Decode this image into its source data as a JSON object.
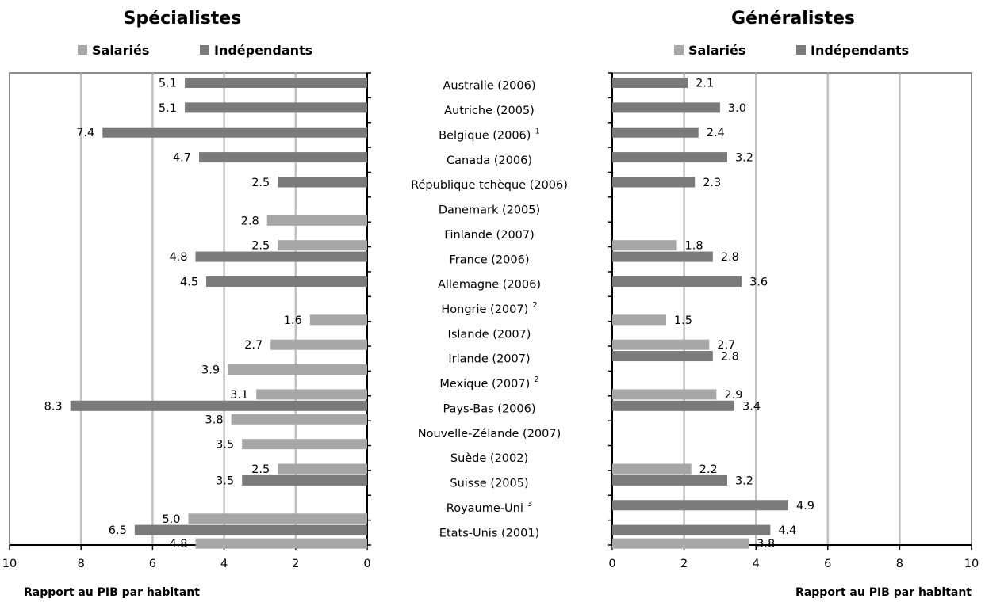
{
  "chart_data": [
    {
      "type": "bar",
      "orientation": "horizontal",
      "direction": "reversed",
      "title": "Spécialistes",
      "xlabel": "Rapport au PIB par habitant",
      "xlim": [
        0,
        10
      ],
      "xticks": [
        "0",
        "2",
        "4",
        "6",
        "8",
        "10"
      ],
      "grid": true,
      "legend": "top",
      "categories": [
        "Australie (2006)",
        "Autriche (2005)",
        "Belgique (2006)",
        "Canada (2006)",
        "République tchèque (2006)",
        "Danemark (2005)",
        "Finlande (2007)",
        "France (2006)",
        "Allemagne (2006)",
        "Hongrie (2007)",
        "Islande (2007)",
        "Irlande (2007)",
        "Mexique (2007)",
        "Pays-Bas (2006)",
        "Nouvelle-Zélande (2007)",
        "Suède (2002)",
        "Suisse (2005)",
        "Royaume-Uni",
        "Etats-Unis (2001)"
      ],
      "series": [
        {
          "name": "Salariés",
          "color": "#a6a6a6",
          "values": [
            null,
            null,
            null,
            null,
            null,
            2.8,
            2.5,
            null,
            null,
            1.6,
            2.7,
            3.9,
            3.1,
            3.8,
            3.5,
            2.5,
            null,
            5.0,
            4.8
          ],
          "labels": [
            "",
            "",
            "",
            "",
            "",
            "2.8",
            "2.5",
            "",
            "",
            "1.6",
            "2.7",
            "3.9",
            "3.1",
            "3.8",
            "3.5",
            "2.5",
            "",
            "5.0",
            "4.8"
          ]
        },
        {
          "name": "Indépendants",
          "color": "#7a7a7a",
          "values": [
            5.1,
            5.1,
            7.4,
            4.7,
            2.5,
            null,
            null,
            4.8,
            4.5,
            null,
            null,
            null,
            null,
            8.3,
            null,
            null,
            3.5,
            null,
            6.5
          ],
          "labels": [
            "5.1",
            "5.1",
            "7.4",
            "4.7",
            "2.5",
            "",
            "",
            "4.8",
            "4.5",
            "",
            "",
            "",
            "",
            "8.3",
            "",
            "",
            "3.5",
            "",
            "6.5"
          ]
        }
      ]
    },
    {
      "type": "bar",
      "orientation": "horizontal",
      "title": "Généralistes",
      "xlabel": "Rapport au PIB par habitant",
      "xlim": [
        0,
        10
      ],
      "xticks": [
        "0",
        "2",
        "4",
        "6",
        "8",
        "10"
      ],
      "grid": true,
      "legend": "top",
      "series": [
        {
          "name": "Salariés",
          "color": "#a6a6a6",
          "values": [
            null,
            null,
            null,
            null,
            null,
            null,
            1.8,
            null,
            null,
            1.5,
            2.7,
            null,
            2.9,
            null,
            null,
            2.2,
            null,
            null,
            3.8
          ],
          "labels": [
            "",
            "",
            "",
            "",
            "",
            "",
            "1.8",
            "",
            "",
            "1.5",
            "2.7",
            "",
            "2.9",
            "",
            "",
            "2.2",
            "",
            "",
            "3.8"
          ]
        },
        {
          "name": "Indépendants",
          "color": "#7a7a7a",
          "values": [
            2.1,
            3.0,
            2.4,
            3.2,
            2.3,
            null,
            null,
            2.8,
            3.6,
            null,
            null,
            2.8,
            null,
            3.4,
            null,
            null,
            3.2,
            4.9,
            4.4
          ],
          "labels": [
            "2.1",
            "3.0",
            "2.4",
            "3.2",
            "2.3",
            "",
            "",
            "2.8",
            "3.6",
            "",
            "",
            "2.8",
            "",
            "3.4",
            "",
            "",
            "3.2",
            "4.9",
            "4.4"
          ]
        }
      ]
    }
  ],
  "category_superscripts": {
    "2": "1",
    "9": "2",
    "12": "2",
    "17": "3"
  }
}
